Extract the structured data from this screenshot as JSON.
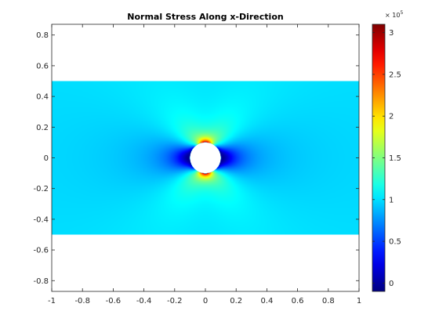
{
  "chart_data": {
    "type": "heatmap",
    "title": "Normal Stress Along x-Direction",
    "xlabel": "",
    "ylabel": "",
    "xlim": [
      -1,
      1
    ],
    "ylim": [
      -0.87,
      0.87
    ],
    "x_ticks": [
      -1,
      -0.8,
      -0.6,
      -0.4,
      -0.2,
      0,
      0.2,
      0.4,
      0.6,
      0.8,
      1
    ],
    "x_tick_labels": [
      "-1",
      "-0.8",
      "-0.6",
      "-0.4",
      "-0.2",
      "0",
      "0.2",
      "0.4",
      "0.6",
      "0.8",
      "1"
    ],
    "y_ticks": [
      0.8,
      0.6,
      0.4,
      0.2,
      0,
      -0.2,
      -0.4,
      -0.6,
      -0.8
    ],
    "y_tick_labels": [
      "0.8",
      "0.6",
      "0.4",
      "0.2",
      "0",
      "-0.2",
      "-0.4",
      "-0.6",
      "-0.8"
    ],
    "domain": {
      "plate_x": [
        -1,
        1
      ],
      "plate_y": [
        -0.5,
        0.5
      ],
      "hole_center": [
        0,
        0
      ],
      "hole_radius": 0.1
    },
    "field": {
      "far_field_stress": 100000,
      "peak_stress": 300000,
      "peak_locations": [
        [
          0,
          0.1
        ],
        [
          0,
          -0.1
        ]
      ]
    },
    "colorbar": {
      "colormap": "jet",
      "clim": [
        -10000,
        310000
      ],
      "ticks": [
        0,
        50000,
        100000,
        150000,
        200000,
        250000,
        300000
      ],
      "tick_labels": [
        "0",
        "0.5",
        "1",
        "1.5",
        "2",
        "2.5",
        "3"
      ],
      "exponent_label": "× 10",
      "exponent_power": "5"
    },
    "grid": false,
    "legend": "none"
  }
}
